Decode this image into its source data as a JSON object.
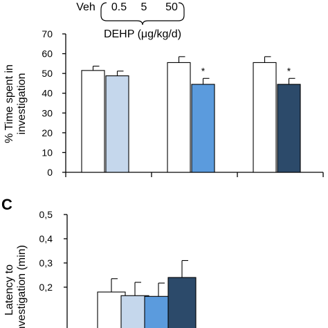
{
  "legend_header": {
    "doses": [
      "Veh",
      "0.5",
      "5",
      "50"
    ],
    "label": "DEHP (μg/kg/d)"
  },
  "chart_data": [
    {
      "type": "bar",
      "panel": "",
      "ylabel_lines": [
        "% Time spent in",
        "investigation"
      ],
      "ylim": [
        0,
        70
      ],
      "yticks": [
        0,
        10,
        20,
        30,
        40,
        50,
        60,
        70
      ],
      "ytick_labels": [
        "0",
        "10",
        "20",
        "30",
        "40",
        "50",
        "60",
        "70"
      ],
      "grid": false,
      "groups": [
        {
          "bars": [
            {
              "value": 51.5,
              "error": 2.2,
              "color": "#ffffff",
              "annotation": ""
            },
            {
              "value": 48.8,
              "error": 2.4,
              "color": "#c5d7ec",
              "annotation": ""
            }
          ]
        },
        {
          "bars": [
            {
              "value": 55.5,
              "error": 3.0,
              "color": "#ffffff",
              "annotation": ""
            },
            {
              "value": 44.5,
              "error": 3.0,
              "color": "#5b9bdd",
              "annotation": "*"
            }
          ]
        },
        {
          "bars": [
            {
              "value": 55.5,
              "error": 3.0,
              "color": "#ffffff",
              "annotation": ""
            },
            {
              "value": 44.5,
              "error": 3.0,
              "color": "#2c4a6a",
              "annotation": "*"
            }
          ]
        }
      ]
    },
    {
      "type": "bar",
      "panel": "C",
      "ylabel_lines": [
        "Latency to",
        "investigation (min)"
      ],
      "ylim": [
        0,
        0.5
      ],
      "yticks": [
        0.2,
        0.3,
        0.4,
        0.5
      ],
      "ytick_labels": [
        "0,2",
        "0,3",
        "0,4",
        "0,5"
      ],
      "grid": false,
      "groups": [
        {
          "bars": [
            {
              "value": 0.18,
              "error": 0.055,
              "color": "#ffffff",
              "annotation": ""
            },
            {
              "value": 0.165,
              "error": 0.055,
              "color": "#c5d7ec",
              "annotation": ""
            },
            {
              "value": 0.162,
              "error": 0.055,
              "color": "#5b9bdd",
              "annotation": ""
            },
            {
              "value": 0.24,
              "error": 0.07,
              "color": "#2c4a6a",
              "annotation": ""
            }
          ]
        }
      ]
    }
  ]
}
